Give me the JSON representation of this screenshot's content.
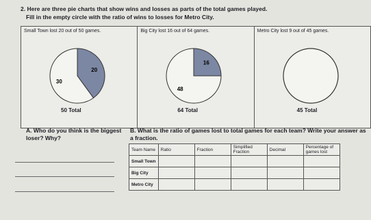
{
  "header": {
    "line1": "2. Here are three pie charts that show wins and losses as parts of the total games played.",
    "line2": "Fill in the empty circle with the ratio of wins to losses for Metro City."
  },
  "panels": [
    {
      "caption": "Small Town lost 20 out of 50 games.",
      "lost": 20,
      "won": 30,
      "total_label": "50 Total"
    },
    {
      "caption": "Big City lost 16 out of 64 games.",
      "lost": 16,
      "won": 48,
      "total_label": "64 Total"
    },
    {
      "caption": "Metro City lost 9 out of 45 games.",
      "total_label": "45 Total"
    }
  ],
  "question_a": "A. Who do you think is the biggest loser? Why?",
  "question_b": "B. What is the ratio of games lost to total games for each team? Write your answer as a fraction.",
  "table": {
    "headers": [
      "Team Name",
      "Ratio",
      "Fraction",
      "Simplified Fraction",
      "Decimal",
      "Percentage of games lost"
    ],
    "rows": [
      "Small Town",
      "Big City",
      "Metro City"
    ]
  }
}
